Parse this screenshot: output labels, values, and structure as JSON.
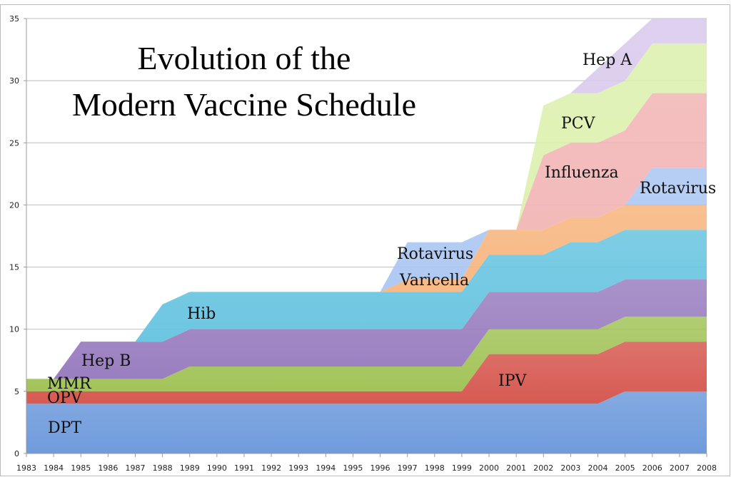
{
  "chart_data": {
    "type": "area",
    "stacked": true,
    "title": [
      "Evolution of the",
      "Modern Vaccine Schedule"
    ],
    "xlabel": "",
    "ylabel": "",
    "xlim": [
      1983,
      2008
    ],
    "ylim": [
      0,
      35
    ],
    "yticks": [
      0,
      5,
      10,
      15,
      20,
      25,
      30,
      35
    ],
    "grid": true,
    "x": [
      1983,
      1984,
      1985,
      1986,
      1987,
      1988,
      1989,
      1990,
      1991,
      1992,
      1993,
      1994,
      1995,
      1996,
      1997,
      1998,
      1999,
      2000,
      2001,
      2002,
      2003,
      2004,
      2005,
      2006,
      2007,
      2008
    ],
    "series": [
      {
        "name": "DPT",
        "color": "#6f9bdc",
        "values": [
          4,
          4,
          4,
          4,
          4,
          4,
          4,
          4,
          4,
          4,
          4,
          4,
          4,
          4,
          4,
          4,
          4,
          4,
          4,
          4,
          4,
          4,
          5,
          5,
          5,
          5
        ]
      },
      {
        "name": "OPV / IPV",
        "color": "#d65a52",
        "values": [
          1,
          1,
          1,
          1,
          1,
          1,
          1,
          1,
          1,
          1,
          1,
          1,
          1,
          1,
          1,
          1,
          1,
          4,
          4,
          4,
          4,
          4,
          4,
          4,
          4,
          4
        ]
      },
      {
        "name": "MMR",
        "color": "#a3c45a",
        "values": [
          1,
          1,
          1,
          1,
          1,
          1,
          2,
          2,
          2,
          2,
          2,
          2,
          2,
          2,
          2,
          2,
          2,
          2,
          2,
          2,
          2,
          2,
          2,
          2,
          2,
          2
        ]
      },
      {
        "name": "Hep B",
        "color": "#9a7fc0",
        "values": [
          0,
          0,
          3,
          3,
          3,
          3,
          3,
          3,
          3,
          3,
          3,
          3,
          3,
          3,
          3,
          3,
          3,
          3,
          3,
          3,
          3,
          3,
          3,
          3,
          3,
          3
        ]
      },
      {
        "name": "Hib",
        "color": "#67c4e0",
        "values": [
          0,
          0,
          0,
          0,
          0,
          3,
          3,
          3,
          3,
          3,
          3,
          3,
          3,
          3,
          3,
          3,
          3,
          3,
          3,
          3,
          4,
          4,
          4,
          4,
          4,
          4
        ]
      },
      {
        "name": "Varicella",
        "color": "#f7b47c",
        "values": [
          0,
          0,
          0,
          0,
          0,
          0,
          0,
          0,
          0,
          0,
          0,
          0,
          0,
          0,
          1,
          1,
          1,
          2,
          2,
          2,
          2,
          2,
          2,
          2,
          2,
          2
        ]
      },
      {
        "name": "Rotavirus",
        "color": "#aac6f2",
        "values": [
          0,
          0,
          0,
          0,
          0,
          0,
          0,
          0,
          0,
          0,
          0,
          0,
          0,
          0,
          3,
          3,
          3,
          0,
          0,
          0,
          0,
          0,
          0,
          3,
          3,
          3
        ]
      },
      {
        "name": "Influenza",
        "color": "#f2b4b4",
        "values": [
          0,
          0,
          0,
          0,
          0,
          0,
          0,
          0,
          0,
          0,
          0,
          0,
          0,
          0,
          0,
          0,
          0,
          0,
          0,
          6,
          6,
          6,
          6,
          6,
          6,
          6
        ]
      },
      {
        "name": "PCV",
        "color": "#dcf0ad",
        "values": [
          0,
          0,
          0,
          0,
          0,
          0,
          0,
          0,
          0,
          0,
          0,
          0,
          0,
          0,
          0,
          0,
          0,
          0,
          0,
          4,
          4,
          4,
          4,
          4,
          4,
          4
        ]
      },
      {
        "name": "Hep A",
        "color": "#d8c8ec",
        "values": [
          0,
          0,
          0,
          0,
          0,
          0,
          0,
          0,
          0,
          0,
          0,
          0,
          0,
          0,
          0,
          0,
          0,
          0,
          0,
          0,
          0,
          2,
          3,
          2,
          2,
          2
        ]
      }
    ],
    "annotations": [
      "DPT",
      "OPV",
      "MMR",
      "Hep B",
      "Hib",
      "Rotavirus",
      "Varicella",
      "IPV",
      "Influenza",
      "Rotavirus",
      "PCV",
      "Hep A"
    ]
  }
}
